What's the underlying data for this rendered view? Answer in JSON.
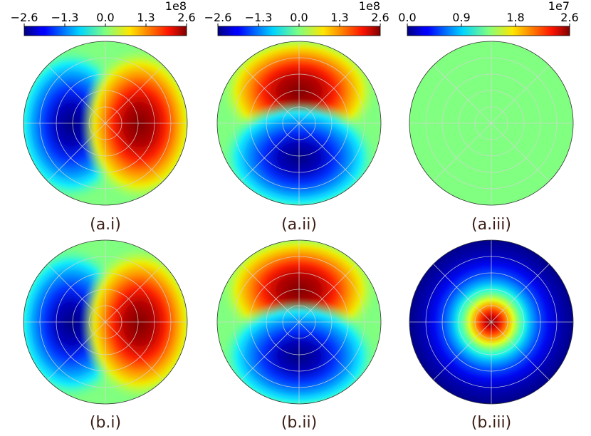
{
  "colors": {
    "colormap": "jet",
    "zero_level": "#80ff80",
    "grid": "#d6d6d6",
    "label_text": "#3a1d14"
  },
  "chart_data": [
    {
      "type": "heatmap",
      "projection": "polar",
      "title": "(a.i)",
      "field": "antisymmetric left-right: negative lobe on the left, positive lobe on the right",
      "colorbar": {
        "min": -2.6,
        "max": 2.6,
        "ticks": [
          "−2.6",
          "−1.3",
          "0.0",
          "1.3",
          "2.6"
        ],
        "exponent": "1e8"
      }
    },
    {
      "type": "heatmap",
      "projection": "polar",
      "title": "(a.ii)",
      "field": "antisymmetric top-bottom: positive lobe on top, negative lobe on bottom",
      "colorbar": {
        "min": -2.6,
        "max": 2.6,
        "ticks": [
          "−2.6",
          "−1.3",
          "0.0",
          "1.3",
          "2.6"
        ],
        "exponent": "1e8"
      }
    },
    {
      "type": "heatmap",
      "projection": "polar",
      "title": "(a.iii)",
      "field": "uniform, zero everywhere",
      "colorbar": {
        "min": 0.0,
        "max": 2.6,
        "ticks": [
          "0.0",
          "0.9",
          "1.8",
          "2.6"
        ],
        "exponent": "1e7"
      }
    },
    {
      "type": "heatmap",
      "projection": "polar",
      "title": "(b.i)",
      "field": "antisymmetric left-right: negative lobe on the left, positive lobe on the right"
    },
    {
      "type": "heatmap",
      "projection": "polar",
      "title": "(b.ii)",
      "field": "antisymmetric top-bottom: positive lobe on top, negative lobe on bottom"
    },
    {
      "type": "heatmap",
      "projection": "polar",
      "title": "(b.iii)",
      "field": "radially symmetric peak at the centre decaying to minimum at the rim"
    }
  ]
}
